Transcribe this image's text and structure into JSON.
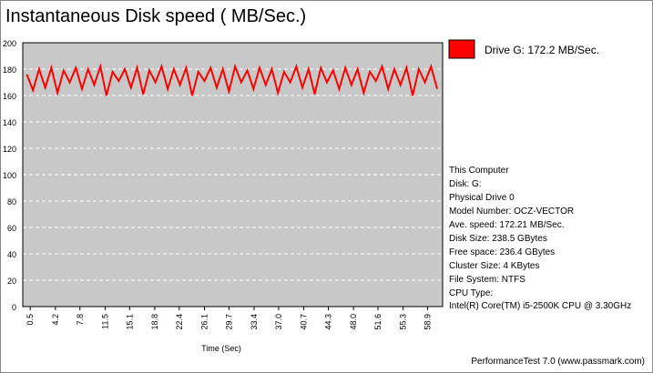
{
  "chart_data": {
    "type": "line",
    "title": "Instantaneous Disk speed ( MB/Sec.)",
    "x_label": "Time (Sec)",
    "x": [
      0,
      0.9,
      1.8,
      2.7,
      3.6,
      4.5,
      5.4,
      6.3,
      7.2,
      8.1,
      9,
      9.9,
      10.8,
      11.7,
      12.6,
      13.5,
      14.4,
      15.3,
      16.2,
      17.1,
      18,
      18.9,
      19.8,
      20.7,
      21.6,
      22.5,
      23.4,
      24.3,
      25.2,
      26.1,
      27,
      27.9,
      28.8,
      29.7,
      30.6,
      31.5,
      32.4,
      33.3,
      34.2,
      35.1,
      36,
      36.9,
      37.8,
      38.7,
      39.6,
      40.5,
      41.4,
      42.3,
      43.2,
      44.1,
      45,
      45.9,
      46.8,
      47.7,
      48.6,
      49.5,
      50.4,
      51.3,
      52.2,
      53.1,
      54,
      54.9,
      55.8,
      56.7,
      57.6,
      58.5,
      59.4,
      60.3
    ],
    "series": [
      {
        "name": "Drive G: 172.2 MB/Sec.",
        "color": "#ff0000",
        "values": [
          176,
          164,
          180,
          166,
          181,
          162,
          179,
          170,
          181,
          165,
          180,
          168,
          182,
          160,
          178,
          171,
          180,
          166,
          181,
          161,
          179,
          170,
          182,
          165,
          180,
          168,
          181,
          160,
          178,
          171,
          181,
          166,
          180,
          163,
          182,
          170,
          179,
          165,
          181,
          168,
          180,
          162,
          178,
          170,
          182,
          166,
          180,
          161,
          181,
          170,
          179,
          165,
          181,
          168,
          180,
          162,
          178,
          171,
          182,
          165,
          180,
          168,
          181,
          160,
          180,
          170,
          182,
          165
        ]
      }
    ],
    "xlim": [
      -0.6,
      61.1
    ],
    "xticks": [
      0.5,
      4.2,
      7.8,
      11.5,
      15.1,
      18.8,
      22.4,
      26.1,
      29.7,
      33.4,
      {
        "value": 37,
        "label": "37.0"
      },
      40.7,
      44.3,
      {
        "value": 48,
        "label": "48.0"
      },
      51.6,
      55.3,
      58.9
    ],
    "ylim": [
      0,
      200
    ],
    "yticks": [
      0,
      20,
      40,
      60,
      80,
      100,
      120,
      140,
      160,
      180,
      200
    ],
    "grid": true,
    "plot_color": "#c8c8c8"
  },
  "info": [
    "This Computer",
    "Disk: G:",
    "Physical Drive 0",
    "Model Number: OCZ-VECTOR",
    "Ave. speed: 172.21 MB/Sec.",
    "Disk Size: 238.5 GBytes",
    "Free space: 236.4 GBytes",
    "Cluster Size: 4 KBytes",
    "File System: NTFS",
    "CPU Type:",
    "Intel(R) Core(TM) i5-2500K CPU @ 3.30GHz"
  ],
  "footer": "PerformanceTest 7.0 (www.passmark.com)"
}
